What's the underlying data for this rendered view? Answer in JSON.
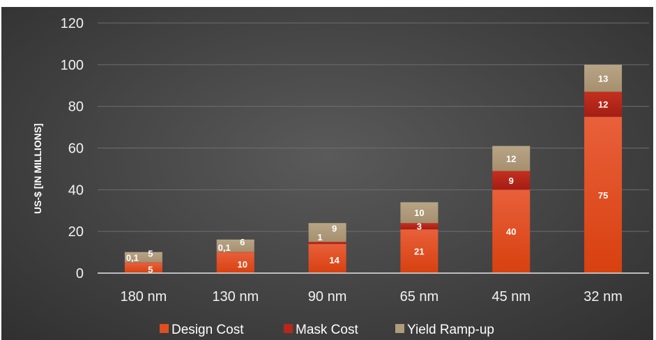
{
  "chart_data": {
    "type": "bar",
    "stacked": true,
    "categories": [
      "180 nm",
      "130 nm",
      "90 nm",
      "65 nm",
      "45 nm",
      "32 nm"
    ],
    "series": [
      {
        "name": "Design Cost",
        "color": "#e04e21",
        "values": [
          5,
          10,
          14,
          21,
          40,
          75
        ],
        "labels": [
          "5",
          "10",
          "14",
          "21",
          "40",
          "75"
        ]
      },
      {
        "name": "Mask Cost",
        "color": "#b8271c",
        "values": [
          0.1,
          0.1,
          1,
          3,
          9,
          12
        ],
        "labels": [
          "0,1",
          "0,1",
          "1",
          "3",
          "9",
          "12"
        ]
      },
      {
        "name": "Yield Ramp-up",
        "color": "#b09c7c",
        "values": [
          5,
          6,
          9,
          10,
          12,
          13
        ],
        "labels": [
          "5",
          "6",
          "9",
          "10",
          "12",
          "13"
        ]
      }
    ],
    "ylabel": "US-$ [IN MILLIONS]",
    "ylim": [
      0,
      120
    ],
    "yticks": [
      0,
      20,
      40,
      60,
      80,
      100,
      120
    ],
    "grid": true,
    "legend": "bottom"
  }
}
